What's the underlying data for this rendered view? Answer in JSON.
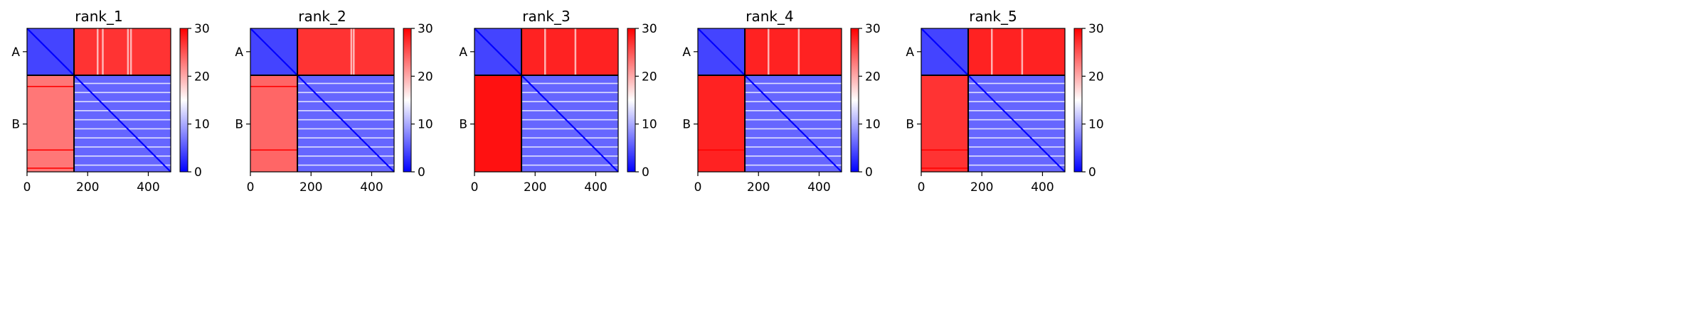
{
  "chart_data": [
    {
      "type": "heatmap",
      "title": "rank_1",
      "xlabel": "",
      "ylabel": "",
      "x_ticks": [
        0,
        200,
        400
      ],
      "y_ticks": [
        {
          "label": "A",
          "at": 77
        },
        {
          "label": "B",
          "at": 316
        }
      ],
      "n": 474,
      "chain_boundary": 155,
      "colorbar": {
        "min": 0,
        "max": 30,
        "ticks": [
          0,
          10,
          20,
          30
        ]
      },
      "colormap": [
        "#0000ff",
        "#ffffff",
        "#ff0000"
      ],
      "blocks": {
        "AA": 4,
        "AB": 27,
        "BA": 23,
        "BB": 6
      },
      "stripes": {
        "AB_light_columns": [
          230,
          247,
          330,
          340
        ],
        "BA_dark_rows": [
          190,
          400,
          460
        ]
      }
    },
    {
      "type": "heatmap",
      "title": "rank_2",
      "xlabel": "",
      "ylabel": "",
      "x_ticks": [
        0,
        200,
        400
      ],
      "y_ticks": [
        {
          "label": "A",
          "at": 77
        },
        {
          "label": "B",
          "at": 316
        }
      ],
      "n": 474,
      "chain_boundary": 155,
      "colorbar": {
        "min": 0,
        "max": 30,
        "ticks": [
          0,
          10,
          20,
          30
        ]
      },
      "colormap": [
        "#0000ff",
        "#ffffff",
        "#ff0000"
      ],
      "blocks": {
        "AA": 4,
        "AB": 27,
        "BA": 24,
        "BB": 6
      },
      "stripes": {
        "AB_light_columns": [
          330,
          338
        ],
        "BA_dark_rows": [
          190,
          400
        ]
      }
    },
    {
      "type": "heatmap",
      "title": "rank_3",
      "xlabel": "",
      "ylabel": "",
      "x_ticks": [
        0,
        200,
        400
      ],
      "y_ticks": [
        {
          "label": "A",
          "at": 77
        },
        {
          "label": "B",
          "at": 316
        }
      ],
      "n": 474,
      "chain_boundary": 155,
      "colorbar": {
        "min": 0,
        "max": 30,
        "ticks": [
          0,
          10,
          20,
          30
        ]
      },
      "colormap": [
        "#0000ff",
        "#ffffff",
        "#ff0000"
      ],
      "blocks": {
        "AA": 4,
        "AB": 28,
        "BA": 29,
        "BB": 6
      },
      "stripes": {
        "AB_light_columns": [
          230,
          330
        ],
        "BA_dark_rows": []
      }
    },
    {
      "type": "heatmap",
      "title": "rank_4",
      "xlabel": "",
      "ylabel": "",
      "x_ticks": [
        0,
        200,
        400
      ],
      "y_ticks": [
        {
          "label": "A",
          "at": 77
        },
        {
          "label": "B",
          "at": 316
        }
      ],
      "n": 474,
      "chain_boundary": 155,
      "colorbar": {
        "min": 0,
        "max": 30,
        "ticks": [
          0,
          10,
          20,
          30
        ]
      },
      "colormap": [
        "#0000ff",
        "#ffffff",
        "#ff0000"
      ],
      "blocks": {
        "AA": 4,
        "AB": 28,
        "BA": 28,
        "BB": 6
      },
      "stripes": {
        "AB_light_columns": [
          230,
          330
        ],
        "BA_dark_rows": [
          400
        ]
      }
    },
    {
      "type": "heatmap",
      "title": "rank_5",
      "xlabel": "",
      "ylabel": "",
      "x_ticks": [
        0,
        200,
        400
      ],
      "y_ticks": [
        {
          "label": "A",
          "at": 77
        },
        {
          "label": "B",
          "at": 316
        }
      ],
      "n": 474,
      "chain_boundary": 155,
      "colorbar": {
        "min": 0,
        "max": 30,
        "ticks": [
          0,
          10,
          20,
          30
        ]
      },
      "colormap": [
        "#0000ff",
        "#ffffff",
        "#ff0000"
      ],
      "blocks": {
        "AA": 4,
        "AB": 28,
        "BA": 27,
        "BB": 6
      },
      "stripes": {
        "AB_light_columns": [
          230,
          330
        ],
        "BA_dark_rows": [
          400,
          460
        ]
      }
    }
  ]
}
